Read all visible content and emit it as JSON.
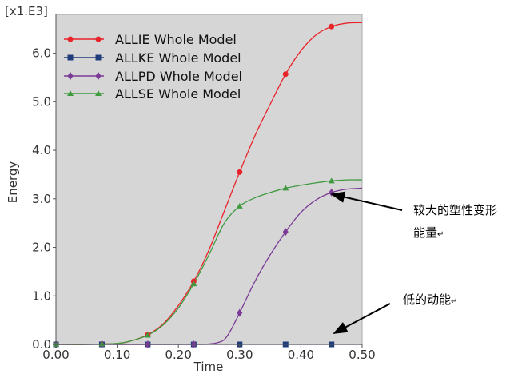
{
  "chart_data": {
    "type": "line",
    "scale_label": "[x1.E3]",
    "xlabel": "Time",
    "ylabel": "Energy",
    "xlim": [
      0,
      0.5
    ],
    "ylim": [
      0,
      6.8
    ],
    "x_ticks": [
      "0.00",
      "0.10",
      "0.20",
      "0.30",
      "0.40",
      "0.50"
    ],
    "y_ticks": [
      "0.0",
      "1.0",
      "2.0",
      "3.0",
      "4.0",
      "5.0",
      "6.0"
    ],
    "legend_position": "top-left",
    "plot_background": "#d6d6d6",
    "series": [
      {
        "name": "ALLIE Whole Model",
        "color": "#e8232a",
        "marker": "circle",
        "x": [
          0,
          0.05,
          0.1,
          0.125,
          0.15,
          0.175,
          0.2,
          0.225,
          0.25,
          0.275,
          0.3,
          0.325,
          0.35,
          0.375,
          0.4,
          0.425,
          0.45,
          0.475,
          0.5
        ],
        "y": [
          0,
          0,
          0.02,
          0.08,
          0.2,
          0.42,
          0.8,
          1.3,
          1.95,
          2.75,
          3.55,
          4.3,
          4.95,
          5.57,
          6.05,
          6.38,
          6.55,
          6.62,
          6.63
        ],
        "marker_x": [
          0,
          0.075,
          0.15,
          0.225,
          0.3,
          0.375,
          0.45
        ]
      },
      {
        "name": "ALLKE Whole Model",
        "color": "#1f3d7a",
        "marker": "square",
        "x": [
          0,
          0.1,
          0.2,
          0.3,
          0.4,
          0.5
        ],
        "y": [
          0,
          0,
          0,
          0,
          0,
          0
        ],
        "marker_x": [
          0,
          0.075,
          0.15,
          0.225,
          0.3,
          0.375,
          0.45
        ]
      },
      {
        "name": "ALLPD Whole Model",
        "color": "#7b3a96",
        "marker": "diamond",
        "x": [
          0,
          0.225,
          0.25,
          0.265,
          0.275,
          0.285,
          0.3,
          0.325,
          0.35,
          0.375,
          0.4,
          0.425,
          0.45,
          0.475,
          0.5
        ],
        "y": [
          0,
          0,
          0.01,
          0.04,
          0.1,
          0.28,
          0.65,
          1.3,
          1.85,
          2.32,
          2.72,
          2.98,
          3.13,
          3.2,
          3.22
        ],
        "marker_x": [
          0,
          0.075,
          0.15,
          0.225,
          0.3,
          0.375,
          0.45
        ]
      },
      {
        "name": "ALLSE Whole Model",
        "color": "#3f9a3f",
        "marker": "triangle",
        "x": [
          0,
          0.05,
          0.1,
          0.125,
          0.15,
          0.175,
          0.2,
          0.225,
          0.25,
          0.275,
          0.3,
          0.325,
          0.35,
          0.375,
          0.4,
          0.425,
          0.45,
          0.475,
          0.5
        ],
        "y": [
          0,
          0,
          0.02,
          0.08,
          0.19,
          0.4,
          0.75,
          1.25,
          1.85,
          2.5,
          2.85,
          3.02,
          3.13,
          3.22,
          3.28,
          3.33,
          3.37,
          3.39,
          3.39
        ],
        "marker_x": [
          0,
          0.075,
          0.15,
          0.225,
          0.3,
          0.375,
          0.45
        ]
      }
    ],
    "annotations": [
      {
        "text_lines": [
          "较大的塑性变形",
          "能量"
        ],
        "mark": "↵"
      },
      {
        "text_lines": [
          "低的动能"
        ],
        "mark": "↵"
      }
    ]
  }
}
